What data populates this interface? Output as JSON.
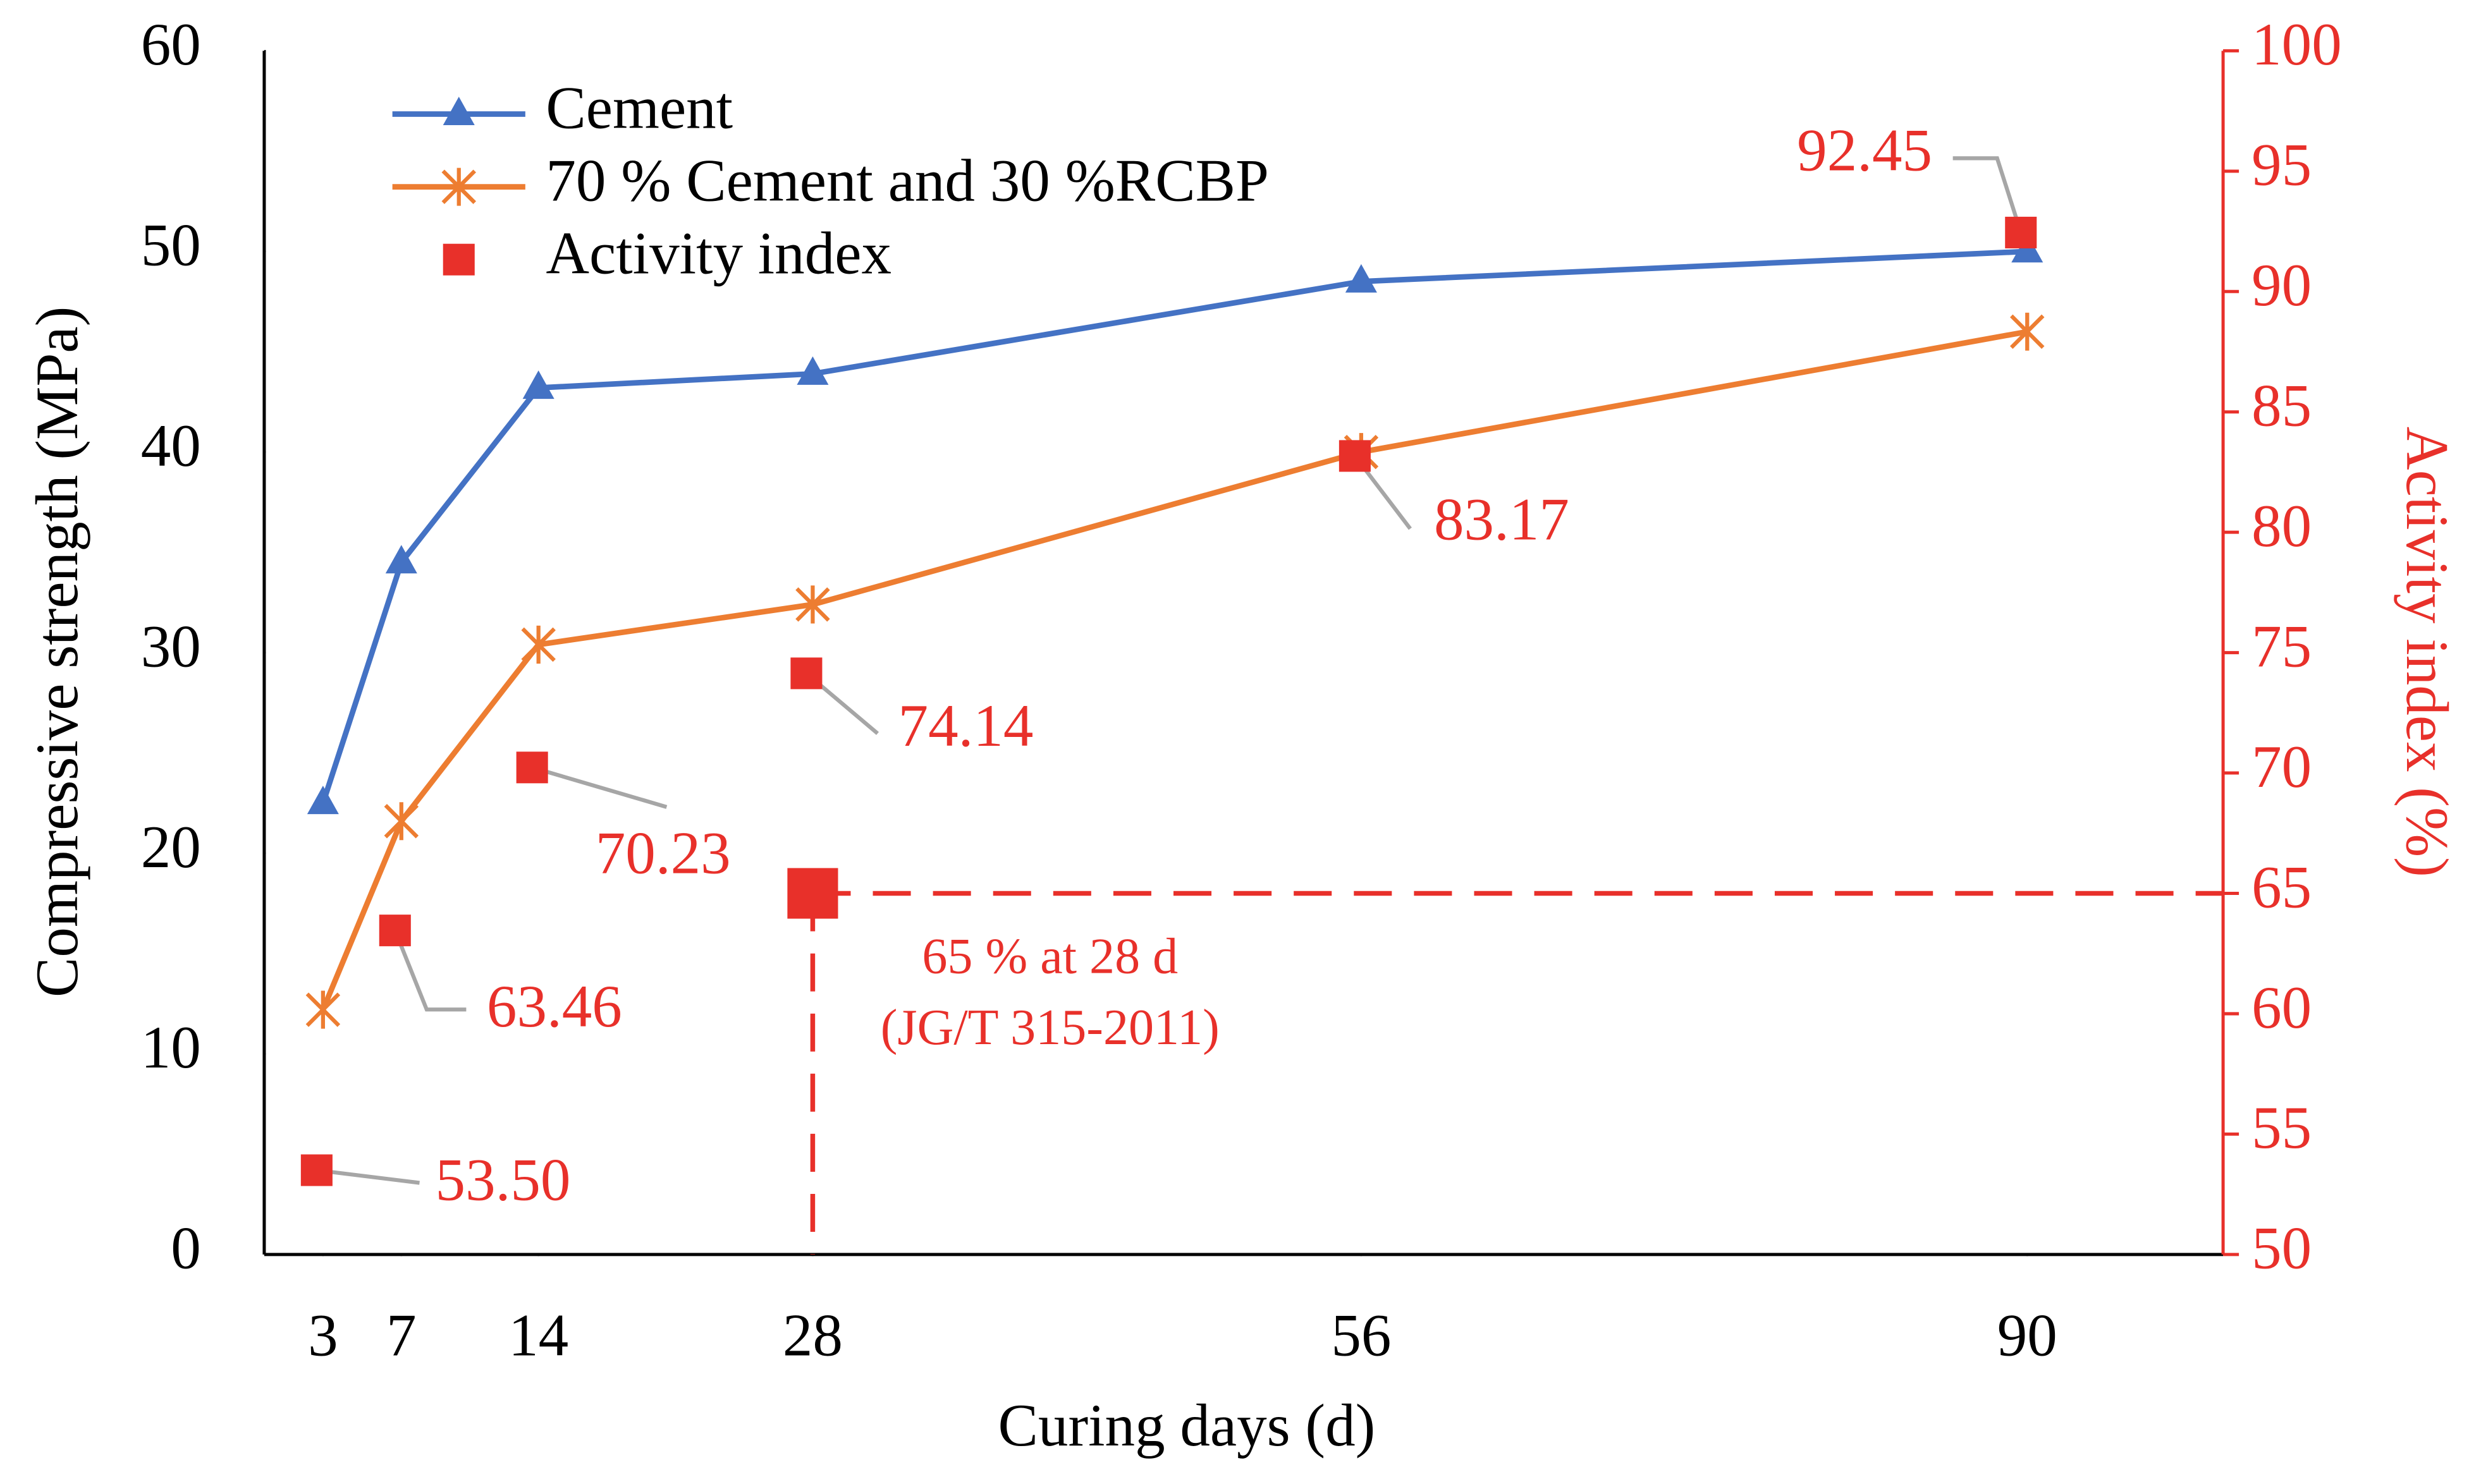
{
  "chart_data": {
    "type": "line",
    "x_label": "Curing days (d)",
    "y_label": "Compressive strength (MPa)",
    "y2_label": "Activity index (%)",
    "x": [
      3,
      7,
      14,
      28,
      56,
      90
    ],
    "xlim": [
      0,
      100
    ],
    "xticks": [
      3,
      7,
      14,
      28,
      56,
      90
    ],
    "ylim": [
      0,
      60
    ],
    "yticks": [
      0,
      10,
      20,
      30,
      40,
      50,
      60
    ],
    "y2lim": [
      50,
      100
    ],
    "y2ticks": [
      50,
      55,
      60,
      65,
      70,
      75,
      80,
      85,
      90,
      95,
      100
    ],
    "legend": "upper left",
    "grid": false,
    "series": [
      {
        "name": "Cement",
        "color": "#4472c4",
        "marker": "triangle",
        "values": [
          22.5,
          34.5,
          43.2,
          43.9,
          48.5,
          50.0
        ]
      },
      {
        "name": "70 % Cement and 30 %RCBP",
        "color": "#ed7d31",
        "marker": "asterisk",
        "values": [
          12.2,
          21.6,
          30.4,
          32.4,
          40.0,
          46.0
        ]
      },
      {
        "name": "Activity index",
        "color": "#e8302a",
        "marker": "square",
        "axis": "y2",
        "values": [
          53.5,
          63.46,
          70.23,
          74.14,
          83.17,
          92.45
        ],
        "value_labels": [
          "53.50",
          "63.46",
          "70.23",
          "74.14",
          "83.17",
          "92.45"
        ]
      }
    ],
    "threshold": {
      "x": 28,
      "value": 65,
      "color": "#e8302a",
      "label_lines": [
        "65 % at 28 d",
        "(JG/T 315-2011)"
      ]
    }
  }
}
